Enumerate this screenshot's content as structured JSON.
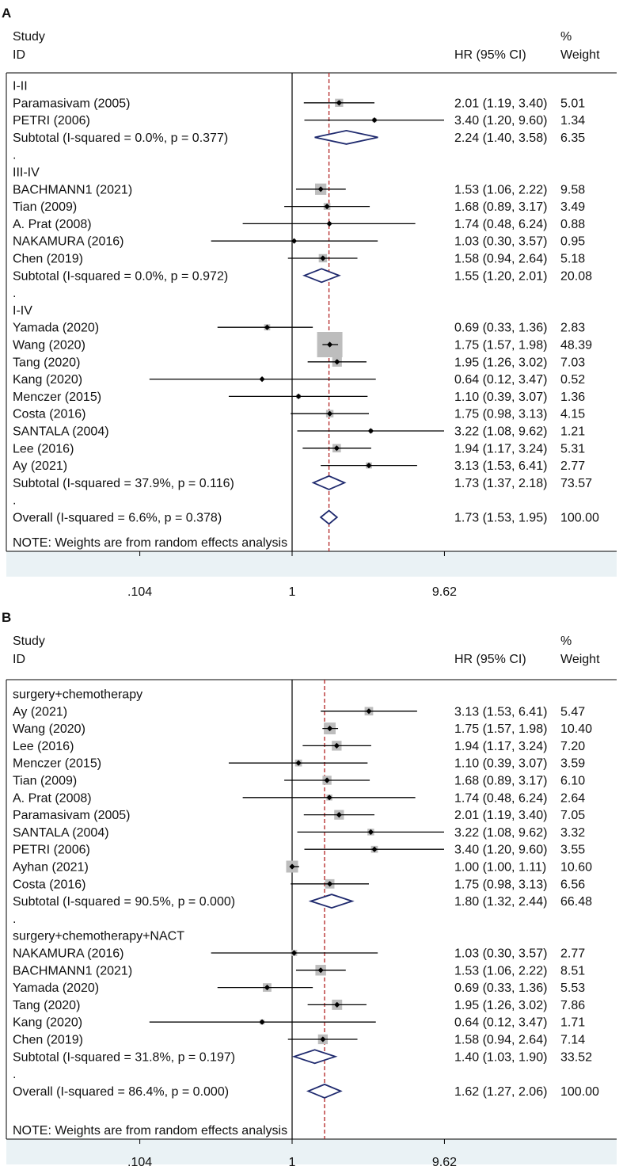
{
  "chart_data": [
    {
      "type": "forest",
      "panel_label": "A",
      "header": {
        "study": "Study",
        "id": "ID",
        "hr": "HR (95% CI)",
        "pct": "%",
        "weight": "Weight"
      },
      "x_axis": {
        "scale": "log",
        "ticks": [
          {
            "value": 0.104,
            "label": ".104"
          },
          {
            "value": 1,
            "label": "1"
          },
          {
            "value": 9.62,
            "label": "9.62"
          }
        ]
      },
      "null_line": 1,
      "overall_line": 1.73,
      "note": "NOTE: Weights are from random effects analysis",
      "rows": [
        {
          "kind": "group",
          "label": "I-II"
        },
        {
          "kind": "study",
          "label": "Paramasivam (2005)",
          "hr": 2.01,
          "lo": 1.19,
          "hi": 3.4,
          "weight": 5.01,
          "ci_text": "2.01 (1.19, 3.40)",
          "weight_text": "5.01"
        },
        {
          "kind": "study",
          "label": "PETRI (2006)",
          "hr": 3.4,
          "lo": 1.2,
          "hi": 9.6,
          "weight": 1.34,
          "ci_text": "3.40 (1.20, 9.60)",
          "weight_text": "1.34"
        },
        {
          "kind": "subtotal",
          "label": "Subtotal  (I-squared = 0.0%, p = 0.377)",
          "hr": 2.24,
          "lo": 1.4,
          "hi": 3.58,
          "weight": 6.35,
          "ci_text": "2.24 (1.40, 3.58)",
          "weight_text": "6.35"
        },
        {
          "kind": "spacer",
          "label": "."
        },
        {
          "kind": "group",
          "label": "III-IV"
        },
        {
          "kind": "study",
          "label": "BACHMANN1 (2021)",
          "hr": 1.53,
          "lo": 1.06,
          "hi": 2.22,
          "weight": 9.58,
          "ci_text": "1.53 (1.06, 2.22)",
          "weight_text": "9.58"
        },
        {
          "kind": "study",
          "label": "Tian (2009)",
          "hr": 1.68,
          "lo": 0.89,
          "hi": 3.17,
          "weight": 3.49,
          "ci_text": "1.68 (0.89, 3.17)",
          "weight_text": "3.49"
        },
        {
          "kind": "study",
          "label": "A. Prat (2008)",
          "hr": 1.74,
          "lo": 0.48,
          "hi": 6.24,
          "weight": 0.88,
          "ci_text": "1.74 (0.48, 6.24)",
          "weight_text": "0.88"
        },
        {
          "kind": "study",
          "label": "NAKAMURA (2016)",
          "hr": 1.03,
          "lo": 0.3,
          "hi": 3.57,
          "weight": 0.95,
          "ci_text": "1.03 (0.30, 3.57)",
          "weight_text": "0.95"
        },
        {
          "kind": "study",
          "label": "Chen (2019)",
          "hr": 1.58,
          "lo": 0.94,
          "hi": 2.64,
          "weight": 5.18,
          "ci_text": "1.58 (0.94, 2.64)",
          "weight_text": "5.18"
        },
        {
          "kind": "subtotal",
          "label": "Subtotal  (I-squared = 0.0%, p = 0.972)",
          "hr": 1.55,
          "lo": 1.2,
          "hi": 2.01,
          "weight": 20.08,
          "ci_text": "1.55 (1.20, 2.01)",
          "weight_text": "20.08"
        },
        {
          "kind": "spacer",
          "label": "."
        },
        {
          "kind": "group",
          "label": "I-IV"
        },
        {
          "kind": "study",
          "label": "Yamada (2020)",
          "hr": 0.69,
          "lo": 0.33,
          "hi": 1.36,
          "weight": 2.83,
          "ci_text": "0.69 (0.33, 1.36)",
          "weight_text": "2.83"
        },
        {
          "kind": "study",
          "label": "Wang (2020)",
          "hr": 1.75,
          "lo": 1.57,
          "hi": 1.98,
          "weight": 48.39,
          "ci_text": "1.75 (1.57, 1.98)",
          "weight_text": "48.39"
        },
        {
          "kind": "study",
          "label": "Tang (2020)",
          "hr": 1.95,
          "lo": 1.26,
          "hi": 3.02,
          "weight": 7.03,
          "ci_text": "1.95 (1.26, 3.02)",
          "weight_text": "7.03"
        },
        {
          "kind": "study",
          "label": "Kang (2020)",
          "hr": 0.64,
          "lo": 0.12,
          "hi": 3.47,
          "weight": 0.52,
          "ci_text": "0.64 (0.12, 3.47)",
          "weight_text": "0.52"
        },
        {
          "kind": "study",
          "label": "Menczer  (2015)",
          "hr": 1.1,
          "lo": 0.39,
          "hi": 3.07,
          "weight": 1.36,
          "ci_text": "1.10 (0.39, 3.07)",
          "weight_text": "1.36"
        },
        {
          "kind": "study",
          "label": "Costa (2016)",
          "hr": 1.75,
          "lo": 0.98,
          "hi": 3.13,
          "weight": 4.15,
          "ci_text": "1.75 (0.98, 3.13)",
          "weight_text": "4.15"
        },
        {
          "kind": "study",
          "label": "SANTALA (2004)",
          "hr": 3.22,
          "lo": 1.08,
          "hi": 9.62,
          "weight": 1.21,
          "ci_text": "3.22 (1.08, 9.62)",
          "weight_text": "1.21"
        },
        {
          "kind": "study",
          "label": "Lee (2016)",
          "hr": 1.94,
          "lo": 1.17,
          "hi": 3.24,
          "weight": 5.31,
          "ci_text": "1.94 (1.17, 3.24)",
          "weight_text": "5.31"
        },
        {
          "kind": "study",
          "label": "Ay (2021)",
          "hr": 3.13,
          "lo": 1.53,
          "hi": 6.41,
          "weight": 2.77,
          "ci_text": "3.13 (1.53, 6.41)",
          "weight_text": "2.77"
        },
        {
          "kind": "subtotal",
          "label": "Subtotal  (I-squared = 37.9%, p = 0.116)",
          "hr": 1.73,
          "lo": 1.37,
          "hi": 2.18,
          "weight": 73.57,
          "ci_text": "1.73 (1.37, 2.18)",
          "weight_text": "73.57"
        },
        {
          "kind": "spacer",
          "label": "."
        },
        {
          "kind": "overall",
          "label": "Overall  (I-squared = 6.6%, p = 0.378)",
          "hr": 1.73,
          "lo": 1.53,
          "hi": 1.95,
          "weight": 100.0,
          "ci_text": "1.73 (1.53, 1.95)",
          "weight_text": "100.00"
        }
      ]
    },
    {
      "type": "forest",
      "panel_label": "B",
      "header": {
        "study": "Study",
        "id": "ID",
        "hr": "HR (95% CI)",
        "pct": "%",
        "weight": "Weight"
      },
      "x_axis": {
        "scale": "log",
        "ticks": [
          {
            "value": 0.104,
            "label": ".104"
          },
          {
            "value": 1,
            "label": "1"
          },
          {
            "value": 9.62,
            "label": "9.62"
          }
        ]
      },
      "null_line": 1,
      "overall_line": 1.62,
      "note": "NOTE: Weights are from random effects analysis",
      "rows": [
        {
          "kind": "group",
          "label": "surgery+chemotherapy"
        },
        {
          "kind": "study",
          "label": "Ay (2021)",
          "hr": 3.13,
          "lo": 1.53,
          "hi": 6.41,
          "weight": 5.47,
          "ci_text": "3.13 (1.53, 6.41)",
          "weight_text": "5.47"
        },
        {
          "kind": "study",
          "label": "Wang (2020)",
          "hr": 1.75,
          "lo": 1.57,
          "hi": 1.98,
          "weight": 10.4,
          "ci_text": "1.75 (1.57, 1.98)",
          "weight_text": "10.40"
        },
        {
          "kind": "study",
          "label": "Lee (2016)",
          "hr": 1.94,
          "lo": 1.17,
          "hi": 3.24,
          "weight": 7.2,
          "ci_text": "1.94 (1.17, 3.24)",
          "weight_text": "7.20"
        },
        {
          "kind": "study",
          "label": "Menczer  (2015)",
          "hr": 1.1,
          "lo": 0.39,
          "hi": 3.07,
          "weight": 3.59,
          "ci_text": "1.10 (0.39, 3.07)",
          "weight_text": "3.59"
        },
        {
          "kind": "study",
          "label": "Tian (2009)",
          "hr": 1.68,
          "lo": 0.89,
          "hi": 3.17,
          "weight": 6.1,
          "ci_text": "1.68 (0.89, 3.17)",
          "weight_text": "6.10"
        },
        {
          "kind": "study",
          "label": "A. Prat (2008)",
          "hr": 1.74,
          "lo": 0.48,
          "hi": 6.24,
          "weight": 2.64,
          "ci_text": "1.74 (0.48, 6.24)",
          "weight_text": "2.64"
        },
        {
          "kind": "study",
          "label": "Paramasivam (2005)",
          "hr": 2.01,
          "lo": 1.19,
          "hi": 3.4,
          "weight": 7.05,
          "ci_text": "2.01 (1.19, 3.40)",
          "weight_text": "7.05"
        },
        {
          "kind": "study",
          "label": "SANTALA (2004)",
          "hr": 3.22,
          "lo": 1.08,
          "hi": 9.62,
          "weight": 3.32,
          "ci_text": "3.22 (1.08, 9.62)",
          "weight_text": "3.32"
        },
        {
          "kind": "study",
          "label": "PETRI (2006)",
          "hr": 3.4,
          "lo": 1.2,
          "hi": 9.6,
          "weight": 3.55,
          "ci_text": "3.40 (1.20, 9.60)",
          "weight_text": "3.55"
        },
        {
          "kind": "study",
          "label": "Ayhan (2021)",
          "hr": 1.0,
          "lo": 1.0,
          "hi": 1.11,
          "weight": 10.6,
          "ci_text": "1.00 (1.00, 1.11)",
          "weight_text": "10.60"
        },
        {
          "kind": "study",
          "label": "Costa (2016)",
          "hr": 1.75,
          "lo": 0.98,
          "hi": 3.13,
          "weight": 6.56,
          "ci_text": "1.75 (0.98, 3.13)",
          "weight_text": "6.56"
        },
        {
          "kind": "subtotal",
          "label": "Subtotal  (I-squared = 90.5%, p = 0.000)",
          "hr": 1.8,
          "lo": 1.32,
          "hi": 2.44,
          "weight": 66.48,
          "ci_text": "1.80 (1.32, 2.44)",
          "weight_text": "66.48"
        },
        {
          "kind": "spacer",
          "label": "."
        },
        {
          "kind": "group",
          "label": "surgery+chemotherapy+NACT"
        },
        {
          "kind": "study",
          "label": "NAKAMURA (2016)",
          "hr": 1.03,
          "lo": 0.3,
          "hi": 3.57,
          "weight": 2.77,
          "ci_text": "1.03 (0.30, 3.57)",
          "weight_text": "2.77"
        },
        {
          "kind": "study",
          "label": "BACHMANN1 (2021)",
          "hr": 1.53,
          "lo": 1.06,
          "hi": 2.22,
          "weight": 8.51,
          "ci_text": "1.53 (1.06, 2.22)",
          "weight_text": "8.51"
        },
        {
          "kind": "study",
          "label": "Yamada (2020)",
          "hr": 0.69,
          "lo": 0.33,
          "hi": 1.36,
          "weight": 5.53,
          "ci_text": "0.69 (0.33, 1.36)",
          "weight_text": "5.53"
        },
        {
          "kind": "study",
          "label": "Tang (2020)",
          "hr": 1.95,
          "lo": 1.26,
          "hi": 3.02,
          "weight": 7.86,
          "ci_text": "1.95 (1.26, 3.02)",
          "weight_text": "7.86"
        },
        {
          "kind": "study",
          "label": "Kang (2020)",
          "hr": 0.64,
          "lo": 0.12,
          "hi": 3.47,
          "weight": 1.71,
          "ci_text": "0.64 (0.12, 3.47)",
          "weight_text": "1.71"
        },
        {
          "kind": "study",
          "label": "Chen (2019)",
          "hr": 1.58,
          "lo": 0.94,
          "hi": 2.64,
          "weight": 7.14,
          "ci_text": "1.58 (0.94, 2.64)",
          "weight_text": "7.14"
        },
        {
          "kind": "subtotal",
          "label": "Subtotal  (I-squared = 31.8%, p = 0.197)",
          "hr": 1.4,
          "lo": 1.03,
          "hi": 1.9,
          "weight": 33.52,
          "ci_text": "1.40 (1.03, 1.90)",
          "weight_text": "33.52"
        },
        {
          "kind": "spacer",
          "label": "."
        },
        {
          "kind": "overall",
          "label": "Overall  (I-squared = 86.4%, p = 0.000)",
          "hr": 1.62,
          "lo": 1.27,
          "hi": 2.06,
          "weight": 100.0,
          "ci_text": "1.62 (1.27, 2.06)",
          "weight_text": "100.00"
        }
      ]
    }
  ],
  "colors": {
    "box": "#bdbdbd",
    "point": "#000000",
    "ci_line": "#000000",
    "diamond": "#1f2a6e",
    "overall_line": "#b22222",
    "axis_band": "#eaf2f5",
    "text": "#111111"
  }
}
